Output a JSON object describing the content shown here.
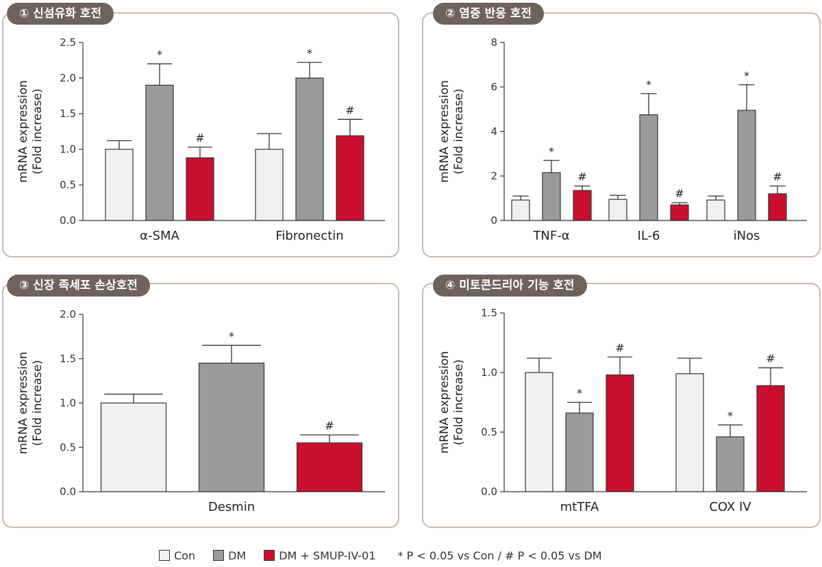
{
  "colors": {
    "con": "#f0f0ee",
    "dm": "#9b9b9b",
    "smup": "#c8102e",
    "frame": "#c9b9b0",
    "title_bg": "#6e625b"
  },
  "legend": {
    "con": "Con",
    "dm": "DM",
    "smup": "DM + SMUP-IV-01",
    "note": "* P < 0.05 vs Con / # P < 0.05 vs DM"
  },
  "chart_data": [
    {
      "type": "bar",
      "title": "① 신섬유화 호전",
      "ylabel_line1": "mRNA expression",
      "ylabel_line2": "(Fold increase)",
      "ylim": [
        0,
        2.5
      ],
      "yticks": [
        "0.0",
        "0.5",
        "1.0",
        "1.5",
        "2.0",
        "2.5"
      ],
      "categories": [
        "α-SMA",
        "Fibronectin"
      ],
      "series": [
        {
          "name": "Con",
          "values": [
            1.0,
            1.0
          ],
          "errors": [
            0.12,
            0.22
          ],
          "marks": [
            "",
            ""
          ]
        },
        {
          "name": "DM",
          "values": [
            1.9,
            2.0
          ],
          "errors": [
            0.3,
            0.22
          ],
          "marks": [
            "*",
            "*"
          ]
        },
        {
          "name": "DM + SMUP-IV-01",
          "values": [
            0.88,
            1.19
          ],
          "errors": [
            0.15,
            0.23
          ],
          "marks": [
            "#",
            "#"
          ]
        }
      ]
    },
    {
      "type": "bar",
      "title": "② 염증 반응 호전",
      "ylabel_line1": "mRNA expression",
      "ylabel_line2": "(Fold increase)",
      "ylim": [
        0,
        8
      ],
      "yticks": [
        "0",
        "2",
        "4",
        "6",
        "8"
      ],
      "categories": [
        "TNF-α",
        "IL-6",
        "iNos"
      ],
      "series": [
        {
          "name": "Con",
          "values": [
            0.92,
            0.95,
            0.92
          ],
          "errors": [
            0.18,
            0.18,
            0.18
          ],
          "marks": [
            "",
            "",
            ""
          ]
        },
        {
          "name": "DM",
          "values": [
            2.15,
            4.75,
            4.95
          ],
          "errors": [
            0.55,
            0.95,
            1.15
          ],
          "marks": [
            "*",
            "*",
            "*"
          ]
        },
        {
          "name": "DM + SMUP-IV-01",
          "values": [
            1.35,
            0.7,
            1.2
          ],
          "errors": [
            0.2,
            0.1,
            0.35
          ],
          "marks": [
            "#",
            "#",
            "#"
          ]
        }
      ]
    },
    {
      "type": "bar",
      "title": "③ 신장 족세포 손상호전",
      "ylabel_line1": "mRNA expression",
      "ylabel_line2": "(Fold increase)",
      "ylim": [
        0,
        2.0
      ],
      "yticks": [
        "0.0",
        "0.5",
        "1.0",
        "1.5",
        "2.0"
      ],
      "categories": [
        "Desmin"
      ],
      "series": [
        {
          "name": "Con",
          "values": [
            1.0
          ],
          "errors": [
            0.1
          ],
          "marks": [
            ""
          ]
        },
        {
          "name": "DM",
          "values": [
            1.45
          ],
          "errors": [
            0.2
          ],
          "marks": [
            "*"
          ]
        },
        {
          "name": "DM + SMUP-IV-01",
          "values": [
            0.55
          ],
          "errors": [
            0.09
          ],
          "marks": [
            "#"
          ]
        }
      ]
    },
    {
      "type": "bar",
      "title": "④ 미토콘드리아 기능 호전",
      "ylabel_line1": "mRNA expression",
      "ylabel_line2": "(Fold increase)",
      "ylim": [
        0,
        1.5
      ],
      "yticks": [
        "0.0",
        "0.5",
        "1.0",
        "1.5"
      ],
      "categories": [
        "mtTFA",
        "COX IV"
      ],
      "series": [
        {
          "name": "Con",
          "values": [
            1.0,
            0.99
          ],
          "errors": [
            0.12,
            0.13
          ],
          "marks": [
            "",
            ""
          ]
        },
        {
          "name": "DM",
          "values": [
            0.66,
            0.46
          ],
          "errors": [
            0.09,
            0.1
          ],
          "marks": [
            "*",
            "*"
          ]
        },
        {
          "name": "DM + SMUP-IV-01",
          "values": [
            0.98,
            0.89
          ],
          "errors": [
            0.15,
            0.15
          ],
          "marks": [
            "#",
            "#"
          ]
        }
      ]
    }
  ]
}
